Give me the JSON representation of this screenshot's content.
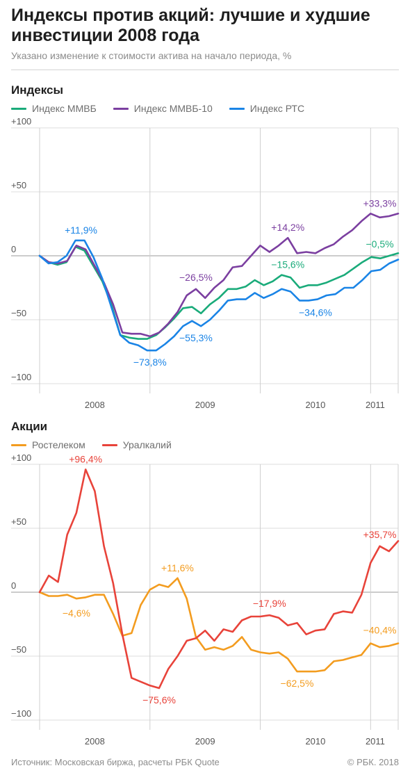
{
  "header": {
    "title": "Индексы против акций: лучшие и худшие инвестиции 2008 года",
    "subtitle": "Указано изменение к стоимости актива на начало периода, %"
  },
  "footer": {
    "source": "Источник: Московская биржа, расчеты РБК Quote",
    "copyright": "© РБК. 2018"
  },
  "chart_data": [
    {
      "type": "line",
      "title": "Индексы",
      "xlabel": "",
      "ylabel": "",
      "ylim": [
        -100,
        100
      ],
      "yticks": [
        100,
        50,
        0,
        -50,
        -100
      ],
      "ytick_labels": [
        "+100",
        "+50",
        "0",
        "−50",
        "−100"
      ],
      "xlim": [
        0,
        39
      ],
      "year_labels": [
        {
          "label": "2008",
          "pos": 6
        },
        {
          "label": "2009",
          "pos": 18
        },
        {
          "label": "2010",
          "pos": 30
        },
        {
          "label": "2011",
          "pos": 36.5
        }
      ],
      "year_separators": [
        12,
        24,
        36
      ],
      "grid": true,
      "legend_position": "top-left",
      "series": [
        {
          "name": "Индекс ММВБ",
          "color": "#1aab7a",
          "values": [
            0,
            -5,
            -7,
            -5,
            7,
            4,
            -8,
            -20,
            -38,
            -62,
            -64,
            -65,
            -65,
            -62,
            -56,
            -49,
            -41,
            -40,
            -45,
            -38,
            -33,
            -26,
            -26,
            -24,
            -19,
            -23,
            -20,
            -15,
            -17,
            -25,
            -23,
            -23,
            -21,
            -18,
            -15,
            -10,
            -5,
            -1,
            -2,
            0,
            2
          ]
        },
        {
          "name": "Индекс ММВБ-10",
          "color": "#7b3fa0",
          "values": [
            0,
            -5,
            -6,
            -4,
            8,
            5,
            -8,
            -21,
            -38,
            -60,
            -61,
            -61,
            -63,
            -60,
            -53,
            -44,
            -31,
            -26,
            -33,
            -25,
            -19,
            -9,
            -8,
            0,
            8,
            3,
            8,
            14,
            2,
            3,
            2,
            6,
            9,
            15,
            20,
            27,
            33,
            30,
            31,
            33
          ]
        },
        {
          "name": "Индекс РТС",
          "color": "#1a84e6",
          "values": [
            0,
            -6,
            -5,
            0,
            12,
            12,
            -1,
            -18,
            -40,
            -62,
            -68,
            -70,
            -74,
            -74,
            -69,
            -63,
            -55,
            -51,
            -55,
            -50,
            -43,
            -35,
            -34,
            -34,
            -29,
            -33,
            -30,
            -26,
            -28,
            -35,
            -35,
            -34,
            -31,
            -30,
            -25,
            -25,
            -19,
            -12,
            -11,
            -6,
            -3
          ]
        }
      ],
      "annotations": [
        {
          "text": "+11,9%",
          "series": 2,
          "x": 4.5,
          "y": 12,
          "color": "#1a84e6"
        },
        {
          "text": "−73,8%",
          "series": 2,
          "x": 12,
          "y": -74,
          "color": "#1a84e6"
        },
        {
          "text": "−26,5%",
          "series": 1,
          "x": 17,
          "y": -26,
          "color": "#7b3fa0"
        },
        {
          "text": "−55,3%",
          "series": 2,
          "x": 17,
          "y": -55,
          "color": "#1a84e6"
        },
        {
          "text": "+14,2%",
          "series": 1,
          "x": 27,
          "y": 14,
          "color": "#7b3fa0"
        },
        {
          "text": "−15,6%",
          "series": 0,
          "x": 27,
          "y": -16,
          "color": "#1aab7a"
        },
        {
          "text": "−34,6%",
          "series": 2,
          "x": 30,
          "y": -35,
          "color": "#1a84e6"
        },
        {
          "text": "+33,3%",
          "series": 1,
          "x": 37,
          "y": 33,
          "color": "#7b3fa0"
        },
        {
          "text": "−0,5%",
          "series": 0,
          "x": 37,
          "y": -1,
          "color": "#1aab7a"
        }
      ]
    },
    {
      "type": "line",
      "title": "Акции",
      "xlabel": "",
      "ylabel": "",
      "ylim": [
        -100,
        100
      ],
      "yticks": [
        100,
        50,
        0,
        -50,
        -100
      ],
      "ytick_labels": [
        "+100",
        "+50",
        "0",
        "−50",
        "−100"
      ],
      "xlim": [
        0,
        39
      ],
      "year_labels": [
        {
          "label": "2008",
          "pos": 6
        },
        {
          "label": "2009",
          "pos": 18
        },
        {
          "label": "2010",
          "pos": 30
        },
        {
          "label": "2011",
          "pos": 36.5
        }
      ],
      "year_separators": [
        12,
        24,
        36
      ],
      "grid": true,
      "legend_position": "top-left",
      "series": [
        {
          "name": "Ростелеком",
          "color": "#f39c1f",
          "values": [
            0,
            -3,
            -3,
            -2,
            -5,
            -4,
            -2,
            -2,
            -17,
            -34,
            -32,
            -10,
            2,
            6,
            4,
            11,
            -5,
            -35,
            -45,
            -43,
            -45,
            -42,
            -35,
            -45,
            -47,
            -48,
            -47,
            -52,
            -62,
            -62,
            -62,
            -61,
            -54,
            -53,
            -51,
            -49,
            -40,
            -43,
            -42,
            -40
          ]
        },
        {
          "name": "Уралкалий",
          "color": "#e8433a",
          "values": [
            0,
            13,
            8,
            45,
            62,
            96,
            79,
            36,
            7,
            -33,
            -67,
            -70,
            -73,
            -75,
            -60,
            -50,
            -38,
            -36,
            -30,
            -38,
            -29,
            -31,
            -22,
            -19,
            -19,
            -18,
            -20,
            -26,
            -24,
            -33,
            -30,
            -29,
            -17,
            -15,
            -16,
            -2,
            23,
            36,
            32,
            40
          ]
        }
      ],
      "annotations": [
        {
          "text": "+96,4%",
          "series": 1,
          "x": 5,
          "y": 96,
          "color": "#e8433a"
        },
        {
          "text": "−4,6%",
          "series": 0,
          "x": 4,
          "y": -5,
          "color": "#f39c1f"
        },
        {
          "text": "+11,6%",
          "series": 0,
          "x": 15,
          "y": 11,
          "color": "#f39c1f"
        },
        {
          "text": "−75,6%",
          "series": 1,
          "x": 13,
          "y": -75,
          "color": "#e8433a"
        },
        {
          "text": "−17,9%",
          "series": 1,
          "x": 25,
          "y": -18,
          "color": "#e8433a"
        },
        {
          "text": "−62,5%",
          "series": 0,
          "x": 28,
          "y": -62,
          "color": "#f39c1f"
        },
        {
          "text": "+35,7%",
          "series": 1,
          "x": 37,
          "y": 36,
          "color": "#e8433a"
        },
        {
          "text": "−40,4%",
          "series": 0,
          "x": 37,
          "y": -40,
          "color": "#f39c1f"
        }
      ]
    }
  ]
}
